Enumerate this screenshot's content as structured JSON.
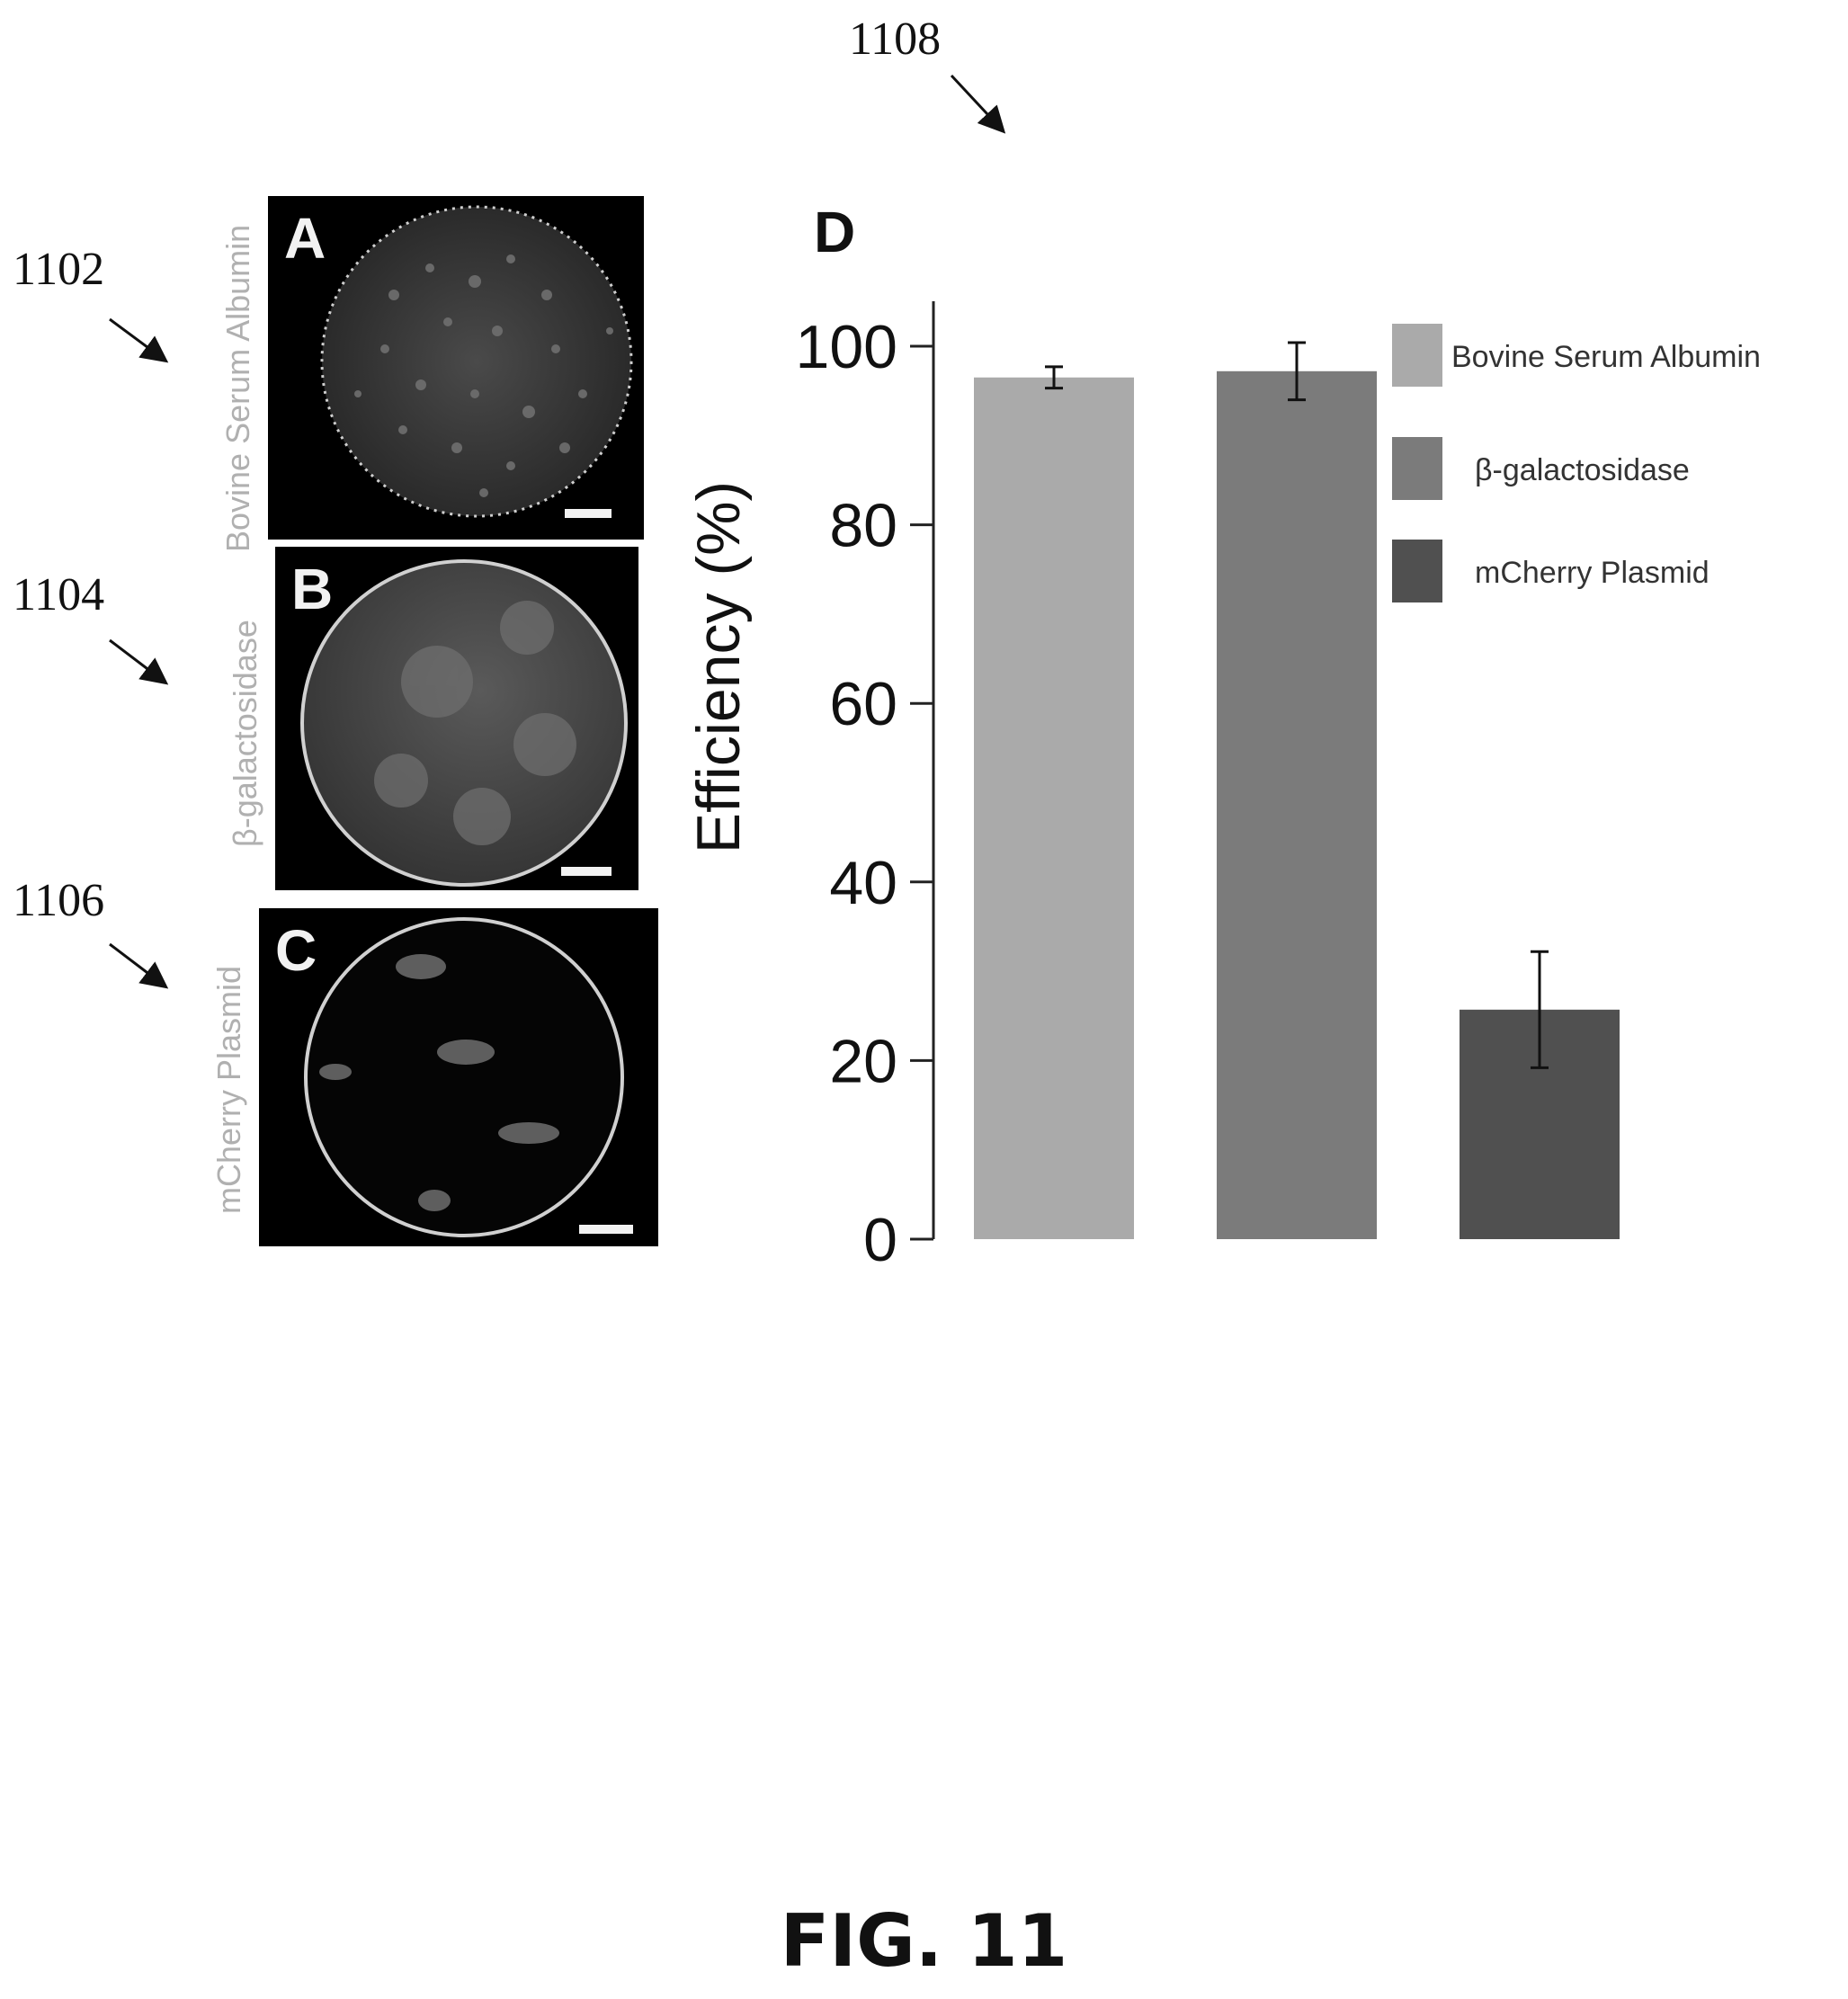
{
  "reference_numerals": {
    "panel_a": "1102",
    "panel_b": "1104",
    "panel_c": "1106",
    "chart": "1108"
  },
  "panels": [
    {
      "letter": "A",
      "label": "Bovine Serum Albumin"
    },
    {
      "letter": "B",
      "label": "β-galactosidase"
    },
    {
      "letter": "C",
      "label": "mCherry Plasmid"
    }
  ],
  "figure_caption": "FIG. 11",
  "chart_data": {
    "type": "bar",
    "panel_letter": "D",
    "title": "",
    "xlabel": "",
    "ylabel": "Efficiency (%)",
    "ylim": [
      0,
      100
    ],
    "yticks": [
      0,
      20,
      40,
      60,
      80,
      100
    ],
    "grid": false,
    "legend_position": "right",
    "categories": [
      "Bovine Serum Albumin",
      "β-galactosidase",
      "mCherry Plasmid"
    ],
    "values": [
      96.5,
      97.2,
      25.7
    ],
    "error": [
      1.2,
      3.2,
      6.5
    ],
    "colors": [
      "#aaaaaa",
      "#7b7b7b",
      "#505050"
    ]
  }
}
